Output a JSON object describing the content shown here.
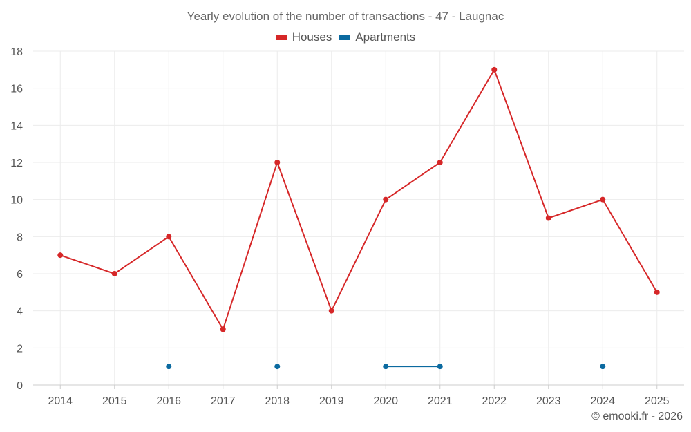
{
  "chart_data": {
    "type": "line",
    "title": "Yearly evolution of the number of transactions - 47 - Laugnac",
    "xlabel": "",
    "ylabel": "",
    "categories": [
      "2014",
      "2015",
      "2016",
      "2017",
      "2018",
      "2019",
      "2020",
      "2021",
      "2022",
      "2023",
      "2024",
      "2025"
    ],
    "ylim": [
      0,
      18
    ],
    "yticks": [
      "0",
      "2",
      "4",
      "6",
      "8",
      "10",
      "12",
      "14",
      "16",
      "18"
    ],
    "grid": true,
    "legend_position": "top-center",
    "series": [
      {
        "name": "Houses",
        "color": "#d62728",
        "values": [
          7,
          6,
          8,
          3,
          12,
          4,
          10,
          12,
          17,
          9,
          10,
          5
        ]
      },
      {
        "name": "Apartments",
        "color": "#0b6aa0",
        "values": [
          null,
          null,
          1,
          null,
          1,
          null,
          1,
          1,
          null,
          null,
          1,
          null
        ]
      }
    ]
  },
  "credit": "© emooki.fr - 2026"
}
